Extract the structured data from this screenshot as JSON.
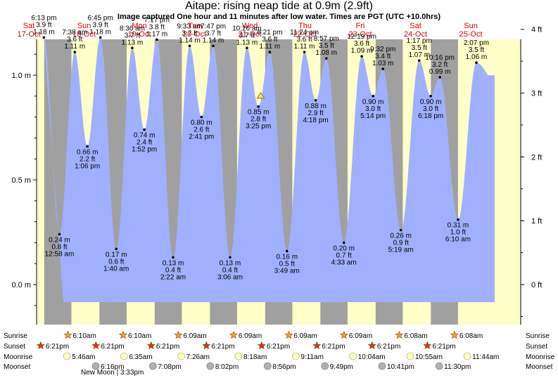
{
  "title": "Aitape: rising  neap tide at 0.9m (2.9ft)",
  "subtitle": "Image captured One hour and 11 minutes after low water. Times are PGT (UTC +10.0hrs)",
  "colors": {
    "water": "#a0b0ff",
    "day_bg": "#ffffc8",
    "night_bg": "#a0a0a0",
    "day_label": "#e00000",
    "sunrise_icon": "#f0a030",
    "sunset_icon": "#e03020",
    "moonrise_icon": "#ffffc0",
    "moonset_icon": "#b0b0b0"
  },
  "chart_data": {
    "type": "area",
    "ylabel_left": "m",
    "ylabel_right": "ft",
    "y_ticks_m": [
      "0.0 m",
      "0.5 m",
      "1.0 m"
    ],
    "y_ticks_ft": [
      "0 ft",
      "1 ft",
      "2 ft",
      "3 ft",
      "4 ft"
    ],
    "days": [
      {
        "dow": "Sat",
        "date": "17-Oct"
      },
      {
        "dow": "Sun",
        "date": "18-Oct"
      },
      {
        "dow": "Mon",
        "date": "19-Oct"
      },
      {
        "dow": "Tue",
        "date": "20-Oct"
      },
      {
        "dow": "Wed",
        "date": "21-Oct"
      },
      {
        "dow": "Thu",
        "date": "22-Oct"
      },
      {
        "dow": "Fri",
        "date": "23-Oct"
      },
      {
        "dow": "Sat",
        "date": "24-Oct"
      },
      {
        "dow": "Sun",
        "date": "25-Oct"
      }
    ],
    "tides": [
      {
        "time": "6:13 pm",
        "ft": "3.9 ft",
        "m": 1.18,
        "label": "1.18 m",
        "type": "high",
        "day": 0
      },
      {
        "time": "12:58 am",
        "ft": "0.8 ft",
        "m": 0.24,
        "label": "0.24 m",
        "type": "low",
        "day": 1
      },
      {
        "time": "7:38 am",
        "ft": "3.6 ft",
        "m": 1.11,
        "label": "1.11 m",
        "type": "high",
        "day": 1
      },
      {
        "time": "1:06 pm",
        "ft": "2.2 ft",
        "m": 0.66,
        "label": "0.66 m",
        "type": "low",
        "day": 1
      },
      {
        "time": "6:45 pm",
        "ft": "3.9 ft",
        "m": 1.18,
        "label": "1.18 m",
        "type": "high",
        "day": 1
      },
      {
        "time": "1:40 am",
        "ft": "0.6 ft",
        "m": 0.17,
        "label": "0.17 m",
        "type": "low",
        "day": 2
      },
      {
        "time": "8:36 am",
        "ft": "3.7 ft",
        "m": 1.13,
        "label": "1.13 m",
        "type": "high",
        "day": 2
      },
      {
        "time": "1:52 pm",
        "ft": "2.4 ft",
        "m": 0.74,
        "label": "0.74 m",
        "type": "low",
        "day": 2
      },
      {
        "time": "7:17 pm",
        "ft": "3.8 ft",
        "m": 1.17,
        "label": "1.17 m",
        "type": "high",
        "day": 2
      },
      {
        "time": "2:22 am",
        "ft": "0.4 ft",
        "m": 0.13,
        "label": "0.13 m",
        "type": "low",
        "day": 3
      },
      {
        "time": "9:33 am",
        "ft": "3.7 ft",
        "m": 1.14,
        "label": "1.14 m",
        "type": "high",
        "day": 3
      },
      {
        "time": "2:41 pm",
        "ft": "2.6 ft",
        "m": 0.8,
        "label": "0.80 m",
        "type": "low",
        "day": 3
      },
      {
        "time": "7:47 pm",
        "ft": "3.7 ft",
        "m": 1.14,
        "label": "1.14 m",
        "type": "high",
        "day": 3
      },
      {
        "time": "3:06 am",
        "ft": "0.4 ft",
        "m": 0.13,
        "label": "0.13 m",
        "type": "low",
        "day": 4
      },
      {
        "time": "10:26 am",
        "ft": "3.7 ft",
        "m": 1.13,
        "label": "1.13 m",
        "type": "high",
        "day": 4
      },
      {
        "time": "3:25 pm",
        "ft": "2.8 ft",
        "m": 0.85,
        "label": "0.85 m",
        "type": "low",
        "day": 4
      },
      {
        "time": "8:21 pm",
        "ft": "3.6 ft",
        "m": 1.11,
        "label": "1.11 m",
        "type": "high",
        "day": 4
      },
      {
        "time": "3:49 am",
        "ft": "0.5 ft",
        "m": 0.16,
        "label": "0.16 m",
        "type": "low",
        "day": 5
      },
      {
        "time": "11:24 am",
        "ft": "3.6 ft",
        "m": 1.11,
        "label": "1.11 m",
        "type": "high",
        "day": 5
      },
      {
        "time": "4:18 pm",
        "ft": "2.9 ft",
        "m": 0.88,
        "label": "0.88 m",
        "type": "low",
        "day": 5
      },
      {
        "time": "8:57 pm",
        "ft": "3.5 ft",
        "m": 1.08,
        "label": "1.08 m",
        "type": "high",
        "day": 5
      },
      {
        "time": "4:33 am",
        "ft": "0.7 ft",
        "m": 0.2,
        "label": "0.20 m",
        "type": "low",
        "day": 6
      },
      {
        "time": "12:19 pm",
        "ft": "3.6 ft",
        "m": 1.09,
        "label": "1.09 m",
        "type": "high",
        "day": 6
      },
      {
        "time": "5:14 pm",
        "ft": "3.0 ft",
        "m": 0.9,
        "label": "0.90 m",
        "type": "low",
        "day": 6
      },
      {
        "time": "9:32 pm",
        "ft": "3.4 ft",
        "m": 1.03,
        "label": "1.03 m",
        "type": "high",
        "day": 6
      },
      {
        "time": "5:19 am",
        "ft": "0.9 ft",
        "m": 0.26,
        "label": "0.26 m",
        "type": "low",
        "day": 7
      },
      {
        "time": "1:17 pm",
        "ft": "3.5 ft",
        "m": 1.07,
        "label": "1.07 m",
        "type": "high",
        "day": 7
      },
      {
        "time": "6:18 pm",
        "ft": "3.0 ft",
        "m": 0.9,
        "label": "0.90 m",
        "type": "low",
        "day": 7
      },
      {
        "time": "10:16 pm",
        "ft": "3.2 ft",
        "m": 0.99,
        "label": "0.99 m",
        "type": "high",
        "day": 7
      },
      {
        "time": "6:10 am",
        "ft": "1.0 ft",
        "m": 0.31,
        "label": "0.31 m",
        "type": "low",
        "day": 8
      },
      {
        "time": "2:07 pm",
        "ft": "3.5 ft",
        "m": 1.06,
        "label": "1.06 m",
        "type": "high",
        "day": 8
      }
    ],
    "current_marker": {
      "day": 4,
      "time": "4:25 pm",
      "m": 0.9
    },
    "almanac": {
      "row_labels": [
        "Sunrise",
        "Sunset",
        "Moonrise",
        "Moonset"
      ],
      "sunrise": [
        "6:10am",
        "6:10am",
        "6:09am",
        "6:09am",
        "6:09am",
        "6:09am",
        "6:08am",
        "6:08am"
      ],
      "sunset": [
        "6:21pm",
        "6:21pm",
        "6:21pm",
        "6:21pm",
        "6:21pm",
        "6:21pm",
        "6:21pm",
        "6:21pm"
      ],
      "moonrise": [
        "5:46am",
        "6:35am",
        "7:26am",
        "8:18am",
        "9:11am",
        "10:04am",
        "10:55am",
        "11:44am"
      ],
      "moonset": [
        "6:16pm",
        "7:08pm",
        "8:02pm",
        "8:56pm",
        "9:49pm",
        "10:41pm",
        "11:30pm"
      ],
      "new_moon": "New Moon | 3:33pm"
    }
  }
}
